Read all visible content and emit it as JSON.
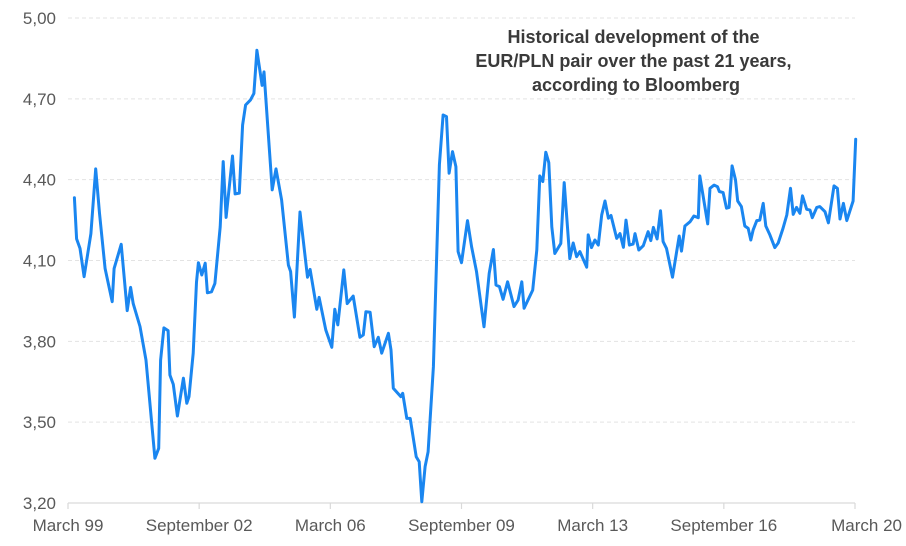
{
  "chart_data": {
    "type": "line",
    "title_lines": [
      "Historical development of the",
      "EUR/PLN pair over the past 21 years,",
      "according to Bloomberg"
    ],
    "xlabel": "",
    "ylabel": "",
    "ylim": [
      3.2,
      5.0
    ],
    "xlim": [
      1999.17,
      2020.17
    ],
    "grid": true,
    "yticks": [
      {
        "value": 3.2,
        "label": "3,20"
      },
      {
        "value": 3.5,
        "label": "3,50"
      },
      {
        "value": 3.8,
        "label": "3,80"
      },
      {
        "value": 4.1,
        "label": "4,10"
      },
      {
        "value": 4.4,
        "label": "4,40"
      },
      {
        "value": 4.7,
        "label": "4,70"
      },
      {
        "value": 5.0,
        "label": "5,00"
      }
    ],
    "xticks": [
      {
        "value": 1999.17,
        "label": "March 99"
      },
      {
        "value": 2002.67,
        "label": "September 02"
      },
      {
        "value": 2006.17,
        "label": "March 06"
      },
      {
        "value": 2009.67,
        "label": "September 09"
      },
      {
        "value": 2013.17,
        "label": "March 13"
      },
      {
        "value": 2016.67,
        "label": "September 16"
      },
      {
        "value": 2020.17,
        "label": "March 20"
      }
    ],
    "series": [
      {
        "name": "EUR/PLN",
        "color": "#1a86f0",
        "x": [
          1999.34,
          1999.4,
          1999.49,
          1999.6,
          1999.78,
          1999.91,
          2000.01,
          2000.16,
          2000.35,
          2000.4,
          2000.59,
          2000.75,
          2000.84,
          2000.91,
          2001.09,
          2001.25,
          2001.49,
          2001.59,
          2001.64,
          2001.73,
          2001.84,
          2001.89,
          2001.98,
          2002.09,
          2002.25,
          2002.34,
          2002.4,
          2002.51,
          2002.6,
          2002.65,
          2002.74,
          2002.83,
          2002.89,
          2003.0,
          2003.09,
          2003.23,
          2003.31,
          2003.39,
          2003.56,
          2003.63,
          2003.74,
          2003.83,
          2003.91,
          2004.04,
          2004.13,
          2004.21,
          2004.35,
          2004.4,
          2004.51,
          2004.62,
          2004.72,
          2004.87,
          2005.05,
          2005.11,
          2005.21,
          2005.36,
          2005.56,
          2005.63,
          2005.81,
          2005.87,
          2006.05,
          2006.21,
          2006.29,
          2006.37,
          2006.53,
          2006.62,
          2006.78,
          2006.96,
          2007.05,
          2007.12,
          2007.23,
          2007.34,
          2007.45,
          2007.54,
          2007.72,
          2007.79,
          2007.85,
          2008.05,
          2008.1,
          2008.21,
          2008.3,
          2008.46,
          2008.54,
          2008.61,
          2008.7,
          2008.78,
          2008.92,
          2009.08,
          2009.18,
          2009.27,
          2009.34,
          2009.43,
          2009.52,
          2009.58,
          2009.67,
          2009.83,
          2009.94,
          2010.07,
          2010.27,
          2010.41,
          2010.52,
          2010.59,
          2010.68,
          2010.78,
          2010.9,
          2011.07,
          2011.18,
          2011.28,
          2011.34,
          2011.57,
          2011.68,
          2011.76,
          2011.84,
          2011.92,
          2012.0,
          2012.08,
          2012.16,
          2012.32,
          2012.41,
          2012.56,
          2012.65,
          2012.74,
          2012.83,
          2013.01,
          2013.05,
          2013.14,
          2013.23,
          2013.32,
          2013.41,
          2013.5,
          2013.59,
          2013.66,
          2013.81,
          2013.9,
          2013.99,
          2014.06,
          2014.15,
          2014.25,
          2014.3,
          2014.4,
          2014.52,
          2014.65,
          2014.72,
          2014.79,
          2014.89,
          2014.98,
          2015.05,
          2015.14,
          2015.3,
          2015.48,
          2015.54,
          2015.63,
          2015.77,
          2015.87,
          2015.99,
          2016.03,
          2016.24,
          2016.3,
          2016.41,
          2016.5,
          2016.55,
          2016.65,
          2016.74,
          2016.81,
          2016.89,
          2016.98,
          2017.04,
          2017.14,
          2017.23,
          2017.32,
          2017.39,
          2017.45,
          2017.55,
          2017.63,
          2017.72,
          2017.79,
          2017.9,
          2018.03,
          2018.12,
          2018.25,
          2018.35,
          2018.45,
          2018.52,
          2018.61,
          2018.7,
          2018.77,
          2018.88,
          2018.97,
          2019.03,
          2019.15,
          2019.23,
          2019.37,
          2019.46,
          2019.61,
          2019.7,
          2019.77,
          2019.86,
          2019.95,
          2020.12,
          2020.19
        ],
        "y": [
          4.333,
          4.18,
          4.145,
          4.04,
          4.2,
          4.44,
          4.275,
          4.07,
          3.947,
          4.07,
          4.16,
          3.914,
          4.0,
          3.94,
          3.855,
          3.73,
          3.366,
          3.403,
          3.73,
          3.85,
          3.84,
          3.675,
          3.64,
          3.523,
          3.663,
          3.57,
          3.595,
          3.756,
          4.02,
          4.092,
          4.046,
          4.09,
          3.98,
          3.984,
          4.015,
          4.225,
          4.467,
          4.26,
          4.488,
          4.347,
          4.35,
          4.603,
          4.677,
          4.696,
          4.72,
          4.88,
          4.75,
          4.8,
          4.58,
          4.362,
          4.44,
          4.325,
          4.083,
          4.059,
          3.89,
          4.28,
          4.038,
          4.067,
          3.919,
          3.963,
          3.842,
          3.778,
          3.919,
          3.861,
          4.065,
          3.94,
          3.968,
          3.815,
          3.824,
          3.91,
          3.908,
          3.78,
          3.815,
          3.756,
          3.83,
          3.768,
          3.626,
          3.595,
          3.607,
          3.514,
          3.514,
          3.372,
          3.353,
          3.205,
          3.335,
          3.39,
          3.706,
          4.455,
          4.64,
          4.634,
          4.424,
          4.504,
          4.448,
          4.133,
          4.092,
          4.248,
          4.151,
          4.059,
          3.854,
          4.052,
          4.141,
          4.009,
          4.003,
          3.956,
          4.021,
          3.929,
          3.953,
          4.021,
          3.923,
          3.99,
          4.139,
          4.414,
          4.393,
          4.502,
          4.463,
          4.225,
          4.126,
          4.163,
          4.389,
          4.107,
          4.165,
          4.114,
          4.133,
          4.075,
          4.195,
          4.148,
          4.176,
          4.157,
          4.269,
          4.321,
          4.257,
          4.267,
          4.182,
          4.2,
          4.149,
          4.25,
          4.157,
          4.161,
          4.2,
          4.139,
          4.155,
          4.207,
          4.174,
          4.223,
          4.18,
          4.285,
          4.17,
          4.145,
          4.038,
          4.191,
          4.135,
          4.228,
          4.244,
          4.265,
          4.259,
          4.414,
          4.236,
          4.368,
          4.38,
          4.374,
          4.356,
          4.352,
          4.294,
          4.297,
          4.451,
          4.399,
          4.321,
          4.3,
          4.228,
          4.219,
          4.176,
          4.213,
          4.248,
          4.25,
          4.312,
          4.228,
          4.195,
          4.148,
          4.165,
          4.219,
          4.269,
          4.368,
          4.271,
          4.297,
          4.275,
          4.34,
          4.29,
          4.287,
          4.259,
          4.297,
          4.3,
          4.281,
          4.24,
          4.377,
          4.368,
          4.254,
          4.312,
          4.248,
          4.321,
          4.55
        ]
      }
    ]
  }
}
